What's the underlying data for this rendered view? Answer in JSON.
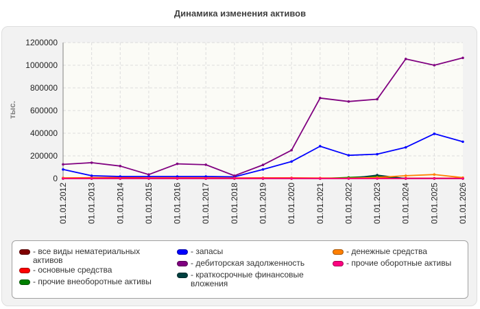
{
  "chart_data": {
    "type": "line",
    "title": "Динамика изменения активов",
    "ylabel": "тыс.",
    "xlabel": "",
    "ylim": [
      0,
      1200000
    ],
    "yticks": [
      0,
      200000,
      400000,
      600000,
      800000,
      1000000,
      1200000
    ],
    "ytick_labels": [
      "0",
      "200000",
      "400000",
      "600000",
      "800000",
      "1000000",
      "1200000"
    ],
    "grid": true,
    "legend_position": "bottom",
    "categories": [
      "01.01.2012",
      "01.01.2013",
      "01.01.2014",
      "01.01.2015",
      "01.01.2016",
      "01.01.2017",
      "01.01.2018",
      "01.01.2019",
      "01.01.2020",
      "01.01.2021",
      "01.01.2022",
      "01.01.2023",
      "01.01.2024",
      "01.01.2025",
      "01.01.2026"
    ],
    "series": [
      {
        "name": "- все виды нематериальных активов",
        "color": "#800000",
        "values": [
          0,
          0,
          0,
          0,
          0,
          0,
          0,
          0,
          0,
          0,
          0,
          0,
          0,
          0,
          0
        ]
      },
      {
        "name": "- основные средства",
        "color": "#ff0000",
        "values": [
          5000,
          8000,
          8000,
          6000,
          6000,
          6000,
          5000,
          6000,
          6000,
          4000,
          4000,
          4000,
          3000,
          3000,
          3000
        ]
      },
      {
        "name": "- прочие внеоборотные активы",
        "color": "#008000",
        "values": [
          0,
          0,
          0,
          0,
          0,
          0,
          0,
          0,
          0,
          0,
          10000,
          20000,
          0,
          0,
          0
        ]
      },
      {
        "name": "- запасы",
        "color": "#0000ff",
        "values": [
          80000,
          25000,
          18000,
          18000,
          18000,
          18000,
          15000,
          80000,
          150000,
          285000,
          205000,
          215000,
          275000,
          395000,
          325000
        ]
      },
      {
        "name": "- дебиторская задолженность",
        "color": "#800080",
        "values": [
          125000,
          140000,
          110000,
          35000,
          130000,
          122000,
          25000,
          120000,
          250000,
          710000,
          680000,
          700000,
          1055000,
          1000000,
          1065000
        ]
      },
      {
        "name": "- краткосрочные финансовые вложения",
        "color": "#004040",
        "values": [
          0,
          0,
          0,
          0,
          0,
          0,
          0,
          0,
          0,
          0,
          0,
          30000,
          0,
          0,
          0
        ]
      },
      {
        "name": "- денежные средства",
        "color": "#ff8000",
        "values": [
          5000,
          5000,
          3000,
          3000,
          3000,
          3000,
          3000,
          3000,
          3000,
          3000,
          3000,
          10000,
          25000,
          35000,
          8000
        ]
      },
      {
        "name": "- прочие оборотные активы",
        "color": "#ff0080",
        "values": [
          0,
          0,
          0,
          0,
          0,
          0,
          0,
          0,
          0,
          0,
          0,
          0,
          0,
          0,
          0
        ]
      }
    ]
  },
  "legend": {
    "items": [
      {
        "label": "- все виды нематериальных активов",
        "color": "#800000"
      },
      {
        "label": "- основные средства",
        "color": "#ff0000"
      },
      {
        "label": "- прочие внеоборотные активы",
        "color": "#008000"
      },
      {
        "label": "- запасы",
        "color": "#0000ff"
      },
      {
        "label": "- дебиторская задолженность",
        "color": "#800080"
      },
      {
        "label": "- краткосрочные финансовые вложения",
        "color": "#004040"
      },
      {
        "label": "- денежные средства",
        "color": "#ff8000"
      },
      {
        "label": "- прочие оборотные активы",
        "color": "#ff0080"
      }
    ]
  }
}
